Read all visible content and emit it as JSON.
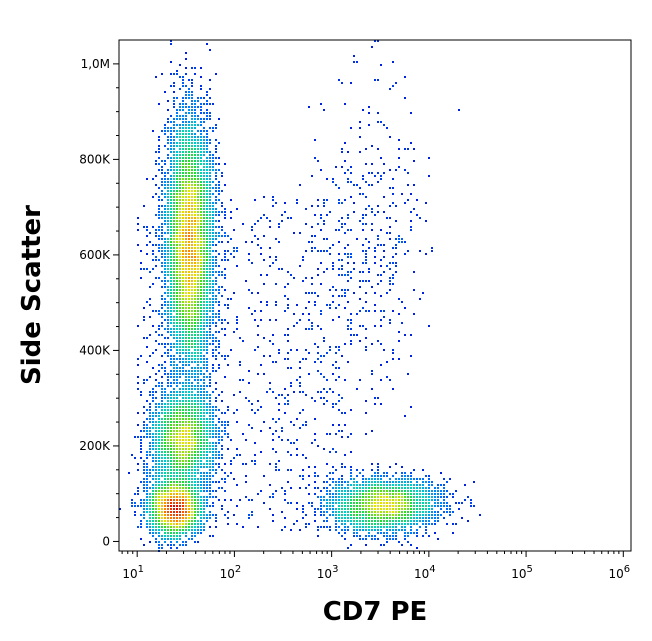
{
  "chart_data": {
    "type": "scatter",
    "title": "",
    "xlabel": "CD7 PE",
    "ylabel": "Side Scatter",
    "x_scale": "log",
    "xlim": [
      6.5,
      1200000
    ],
    "ylim": [
      -20000,
      1050000
    ],
    "x_ticks": [
      {
        "value": 10,
        "base": "10",
        "exp": "1"
      },
      {
        "value": 100,
        "base": "10",
        "exp": "2"
      },
      {
        "value": 1000,
        "base": "10",
        "exp": "3"
      },
      {
        "value": 10000,
        "base": "10",
        "exp": "4"
      },
      {
        "value": 100000,
        "base": "10",
        "exp": "5"
      },
      {
        "value": 1000000,
        "base": "10",
        "exp": "6"
      }
    ],
    "y_ticks": [
      {
        "value": 0,
        "label": "0"
      },
      {
        "value": 200000,
        "label": "200K"
      },
      {
        "value": 400000,
        "label": "400K"
      },
      {
        "value": 600000,
        "label": "600K"
      },
      {
        "value": 800000,
        "label": "800K"
      },
      {
        "value": 1000000,
        "label": "1,0M"
      }
    ],
    "grid": false,
    "color_scale": "density (blue low → green → yellow → red high)",
    "populations": [
      {
        "name": "",
        "x_center": 35,
        "y_center": 620000,
        "x_spread_log10": 0.12,
        "y_spread": 130000,
        "peak_density": "high"
      },
      {
        "name": "",
        "x_center": 30,
        "y_center": 215000,
        "x_spread_log10": 0.16,
        "y_spread": 50000,
        "peak_density": "medium"
      },
      {
        "name": "",
        "x_center": 25,
        "y_center": 70000,
        "x_spread_log10": 0.14,
        "y_spread": 30000,
        "peak_density": "medium"
      },
      {
        "name": "",
        "x_center": 3500,
        "y_center": 75000,
        "x_spread_log10": 0.28,
        "y_spread": 28000,
        "peak_density": "medium"
      },
      {
        "name": "",
        "x_center": 2500,
        "y_center": 620000,
        "x_spread_log10": 0.3,
        "y_spread": 170000,
        "peak_density": "sparse"
      }
    ]
  }
}
